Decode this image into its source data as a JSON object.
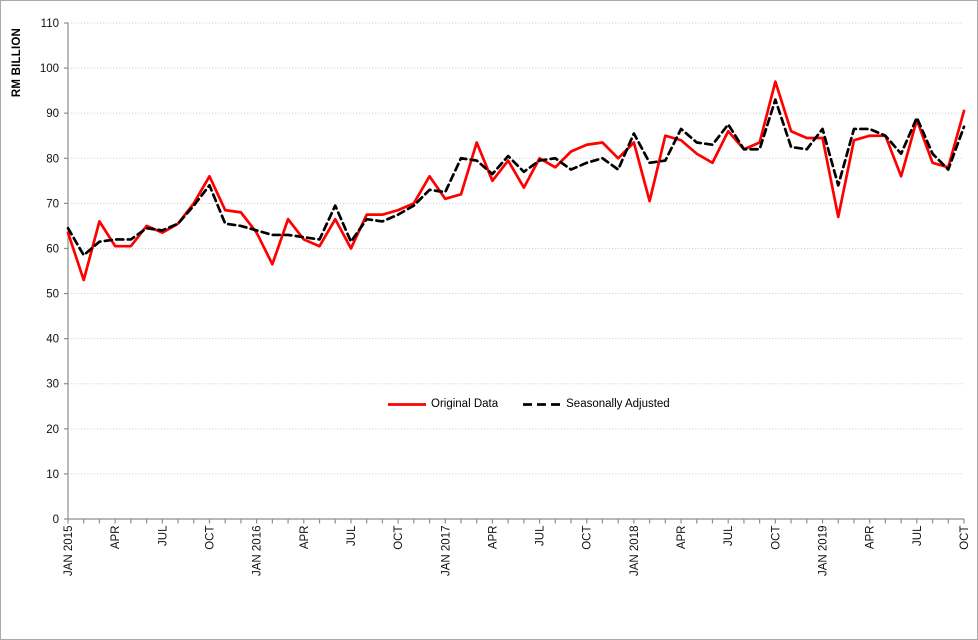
{
  "window": {
    "background": "#FFFFFF",
    "border_color": "#A9A9A9"
  },
  "colors": {
    "gridline": "#C6C6C6",
    "axis_line": "#8E8E8E",
    "tick_text": "#111111",
    "series_original": "#FF0000",
    "series_adjusted": "#000000"
  },
  "chart_data": {
    "type": "line",
    "title": "",
    "xlabel": "",
    "ylabel": "RM BILLION",
    "ylim": [
      0,
      110
    ],
    "ytick_step": 10,
    "yticks": [
      0,
      10,
      20,
      30,
      40,
      50,
      60,
      70,
      80,
      90,
      100,
      110
    ],
    "grid": "horizontal-dotted",
    "legend_position": "center-middle",
    "n_points": 58,
    "x_unit": "month",
    "x_ticklabels": [
      {
        "i": 0,
        "label": "JAN 2015"
      },
      {
        "i": 3,
        "label": "APR"
      },
      {
        "i": 6,
        "label": "JUL"
      },
      {
        "i": 9,
        "label": "OCT"
      },
      {
        "i": 12,
        "label": "JAN 2016"
      },
      {
        "i": 15,
        "label": "APR"
      },
      {
        "i": 18,
        "label": "JUL"
      },
      {
        "i": 21,
        "label": "OCT"
      },
      {
        "i": 24,
        "label": "JAN 2017"
      },
      {
        "i": 27,
        "label": "APR"
      },
      {
        "i": 30,
        "label": "JUL"
      },
      {
        "i": 33,
        "label": "OCT"
      },
      {
        "i": 36,
        "label": "JAN 2018"
      },
      {
        "i": 39,
        "label": "APR"
      },
      {
        "i": 42,
        "label": "JUL"
      },
      {
        "i": 45,
        "label": "OCT"
      },
      {
        "i": 48,
        "label": "JAN 2019"
      },
      {
        "i": 51,
        "label": "APR"
      },
      {
        "i": 54,
        "label": "JUL"
      },
      {
        "i": 57,
        "label": "OCT"
      }
    ],
    "series": [
      {
        "name": "Original Data",
        "color": "#FF0000",
        "line_style": "solid",
        "values": [
          63.5,
          53,
          66,
          60.5,
          60.5,
          65,
          63.5,
          65.5,
          70,
          76,
          68.5,
          68,
          63.5,
          56.5,
          66.5,
          62,
          60.5,
          66.5,
          60,
          67.5,
          67.5,
          68.5,
          70,
          76,
          71,
          72,
          83.5,
          75,
          79.5,
          73.5,
          80,
          78,
          81.5,
          83,
          83.5,
          80,
          83.5,
          70.5,
          85,
          84,
          81,
          79,
          86,
          82,
          83.5,
          97,
          86,
          84.5,
          84.5,
          67,
          84,
          85,
          85,
          76,
          88.5,
          79,
          78,
          90.5
        ]
      },
      {
        "name": "Seasonally Adjusted",
        "color": "#000000",
        "line_style": "dashed",
        "values": [
          64.5,
          58.5,
          61.5,
          62,
          62,
          64.5,
          64,
          65.5,
          69.5,
          74,
          65.5,
          65,
          64,
          63,
          63,
          62.5,
          62,
          69.5,
          61.5,
          66.5,
          66,
          67.5,
          69.5,
          73,
          72.5,
          80,
          79.5,
          76.5,
          80.5,
          77,
          79.5,
          80,
          77.5,
          79,
          80,
          77.5,
          85.5,
          79,
          79.5,
          86.5,
          83.5,
          83,
          87.5,
          82,
          82,
          93,
          82.5,
          82,
          86.5,
          74,
          86.5,
          86.5,
          85,
          81,
          89,
          81,
          77.5,
          87
        ]
      }
    ]
  }
}
